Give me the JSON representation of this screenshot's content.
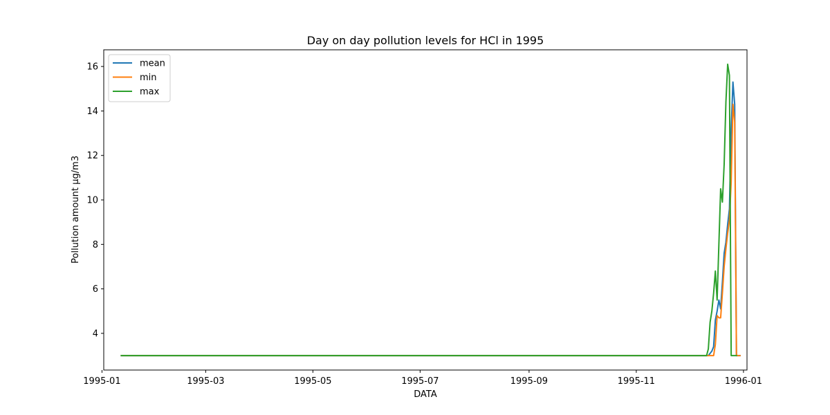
{
  "chart_data": {
    "type": "line",
    "title": "Day on day pollution levels for HCl in 1995",
    "xlabel": "DATA",
    "ylabel": "Pollution amount µg/m3",
    "x_ticks": [
      "1995-01",
      "1995-03",
      "1995-05",
      "1995-07",
      "1995-09",
      "1995-11",
      "1996-01"
    ],
    "y_ticks": [
      "4",
      "6",
      "8",
      "10",
      "12",
      "14",
      "16"
    ],
    "xlim": [
      "1995-01-02",
      "1996-01-03"
    ],
    "ylim": [
      2.35,
      16.75
    ],
    "grid": false,
    "legend_position": "top-left",
    "series": [
      {
        "name": "mean",
        "color": "#1f77b4",
        "points": [
          [
            "1995-01-12",
            3.0
          ],
          [
            "1995-12-10",
            3.0
          ],
          [
            "1995-12-12",
            3.0
          ],
          [
            "1995-12-14",
            3.2
          ],
          [
            "1995-12-15",
            3.4
          ],
          [
            "1995-12-16",
            4.6
          ],
          [
            "1995-12-17",
            5.0
          ],
          [
            "1995-12-18",
            5.5
          ],
          [
            "1995-12-19",
            5.1
          ],
          [
            "1995-12-20",
            6.3
          ],
          [
            "1995-12-21",
            7.6
          ],
          [
            "1995-12-22",
            8.1
          ],
          [
            "1995-12-23",
            8.9
          ],
          [
            "1995-12-24",
            9.6
          ],
          [
            "1995-12-25",
            13.2
          ],
          [
            "1995-12-26",
            15.3
          ],
          [
            "1995-12-27",
            14.3
          ],
          [
            "1995-12-28",
            3.0
          ],
          [
            "1995-12-30",
            3.0
          ]
        ]
      },
      {
        "name": "min",
        "color": "#ff7f0e",
        "points": [
          [
            "1995-01-12",
            3.0
          ],
          [
            "1995-12-14",
            3.0
          ],
          [
            "1995-12-15",
            3.0
          ],
          [
            "1995-12-16",
            3.5
          ],
          [
            "1995-12-17",
            4.8
          ],
          [
            "1995-12-18",
            4.7
          ],
          [
            "1995-12-19",
            4.7
          ],
          [
            "1995-12-20",
            5.8
          ],
          [
            "1995-12-21",
            7.0
          ],
          [
            "1995-12-22",
            7.8
          ],
          [
            "1995-12-23",
            8.5
          ],
          [
            "1995-12-24",
            9.1
          ],
          [
            "1995-12-25",
            10.8
          ],
          [
            "1995-12-26",
            14.3
          ],
          [
            "1995-12-27",
            13.5
          ],
          [
            "1995-12-28",
            3.0
          ],
          [
            "1995-12-30",
            3.0
          ]
        ]
      },
      {
        "name": "max",
        "color": "#2ca02c",
        "points": [
          [
            "1995-01-12",
            3.0
          ],
          [
            "1995-12-10",
            3.0
          ],
          [
            "1995-12-11",
            3.0
          ],
          [
            "1995-12-12",
            3.3
          ],
          [
            "1995-12-13",
            4.5
          ],
          [
            "1995-12-14",
            5.0
          ],
          [
            "1995-12-15",
            5.8
          ],
          [
            "1995-12-16",
            6.8
          ],
          [
            "1995-12-17",
            5.5
          ],
          [
            "1995-12-18",
            8.0
          ],
          [
            "1995-12-19",
            10.5
          ],
          [
            "1995-12-20",
            9.9
          ],
          [
            "1995-12-21",
            11.6
          ],
          [
            "1995-12-22",
            14.4
          ],
          [
            "1995-12-23",
            16.1
          ],
          [
            "1995-12-24",
            15.6
          ],
          [
            "1995-12-25",
            3.0
          ],
          [
            "1995-12-28",
            3.0
          ]
        ]
      }
    ]
  }
}
